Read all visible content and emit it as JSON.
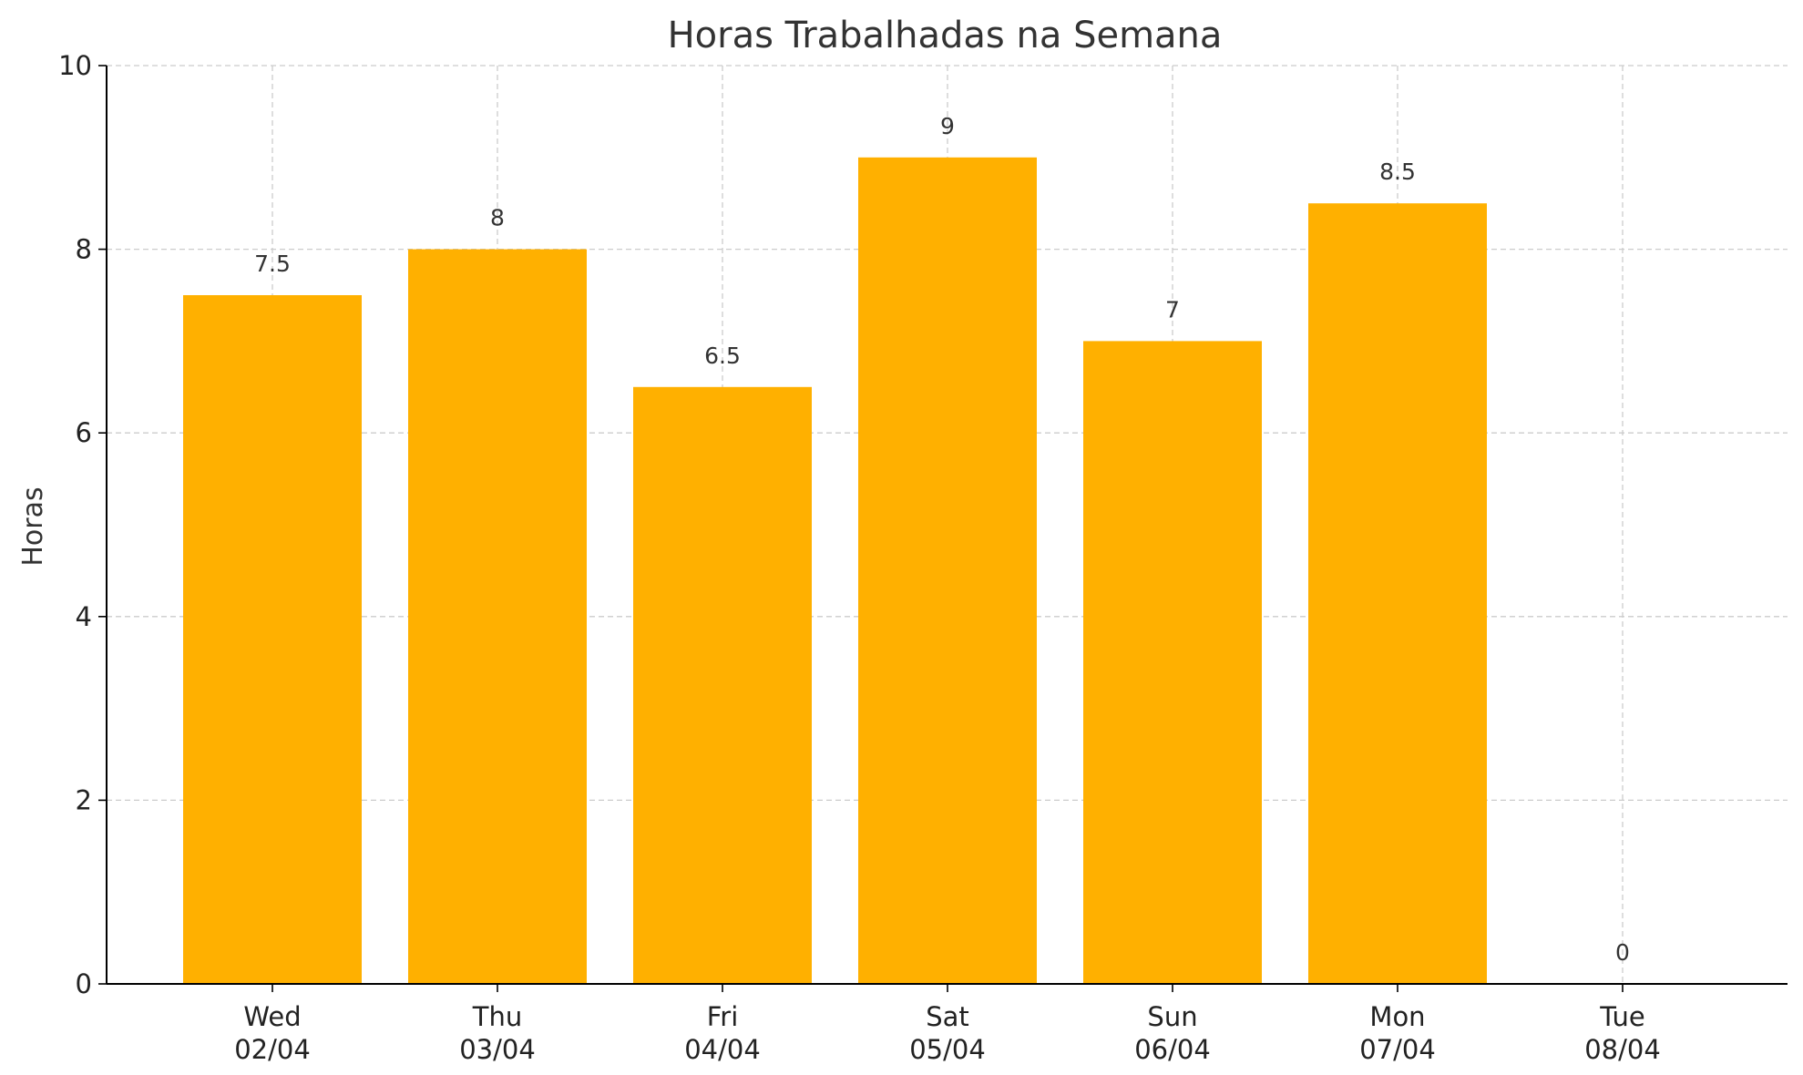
{
  "chart_data": {
    "type": "bar",
    "title": "Horas Trabalhadas na Semana",
    "xlabel": "",
    "ylabel": "Horas",
    "categories": [
      [
        "Wed",
        "02/04"
      ],
      [
        "Thu",
        "03/04"
      ],
      [
        "Fri",
        "04/04"
      ],
      [
        "Sat",
        "05/04"
      ],
      [
        "Sun",
        "06/04"
      ],
      [
        "Mon",
        "07/04"
      ],
      [
        "Tue",
        "08/04"
      ]
    ],
    "values": [
      7.5,
      8,
      6.5,
      9,
      7,
      8.5,
      0
    ],
    "data_labels": [
      "7.5",
      "8",
      "6.5",
      "9",
      "7",
      "8.5",
      "0"
    ],
    "ylim": [
      0,
      10
    ],
    "yticks": [
      0,
      2,
      4,
      6,
      8,
      10
    ],
    "grid": true,
    "bar_color": "#FFB000"
  }
}
